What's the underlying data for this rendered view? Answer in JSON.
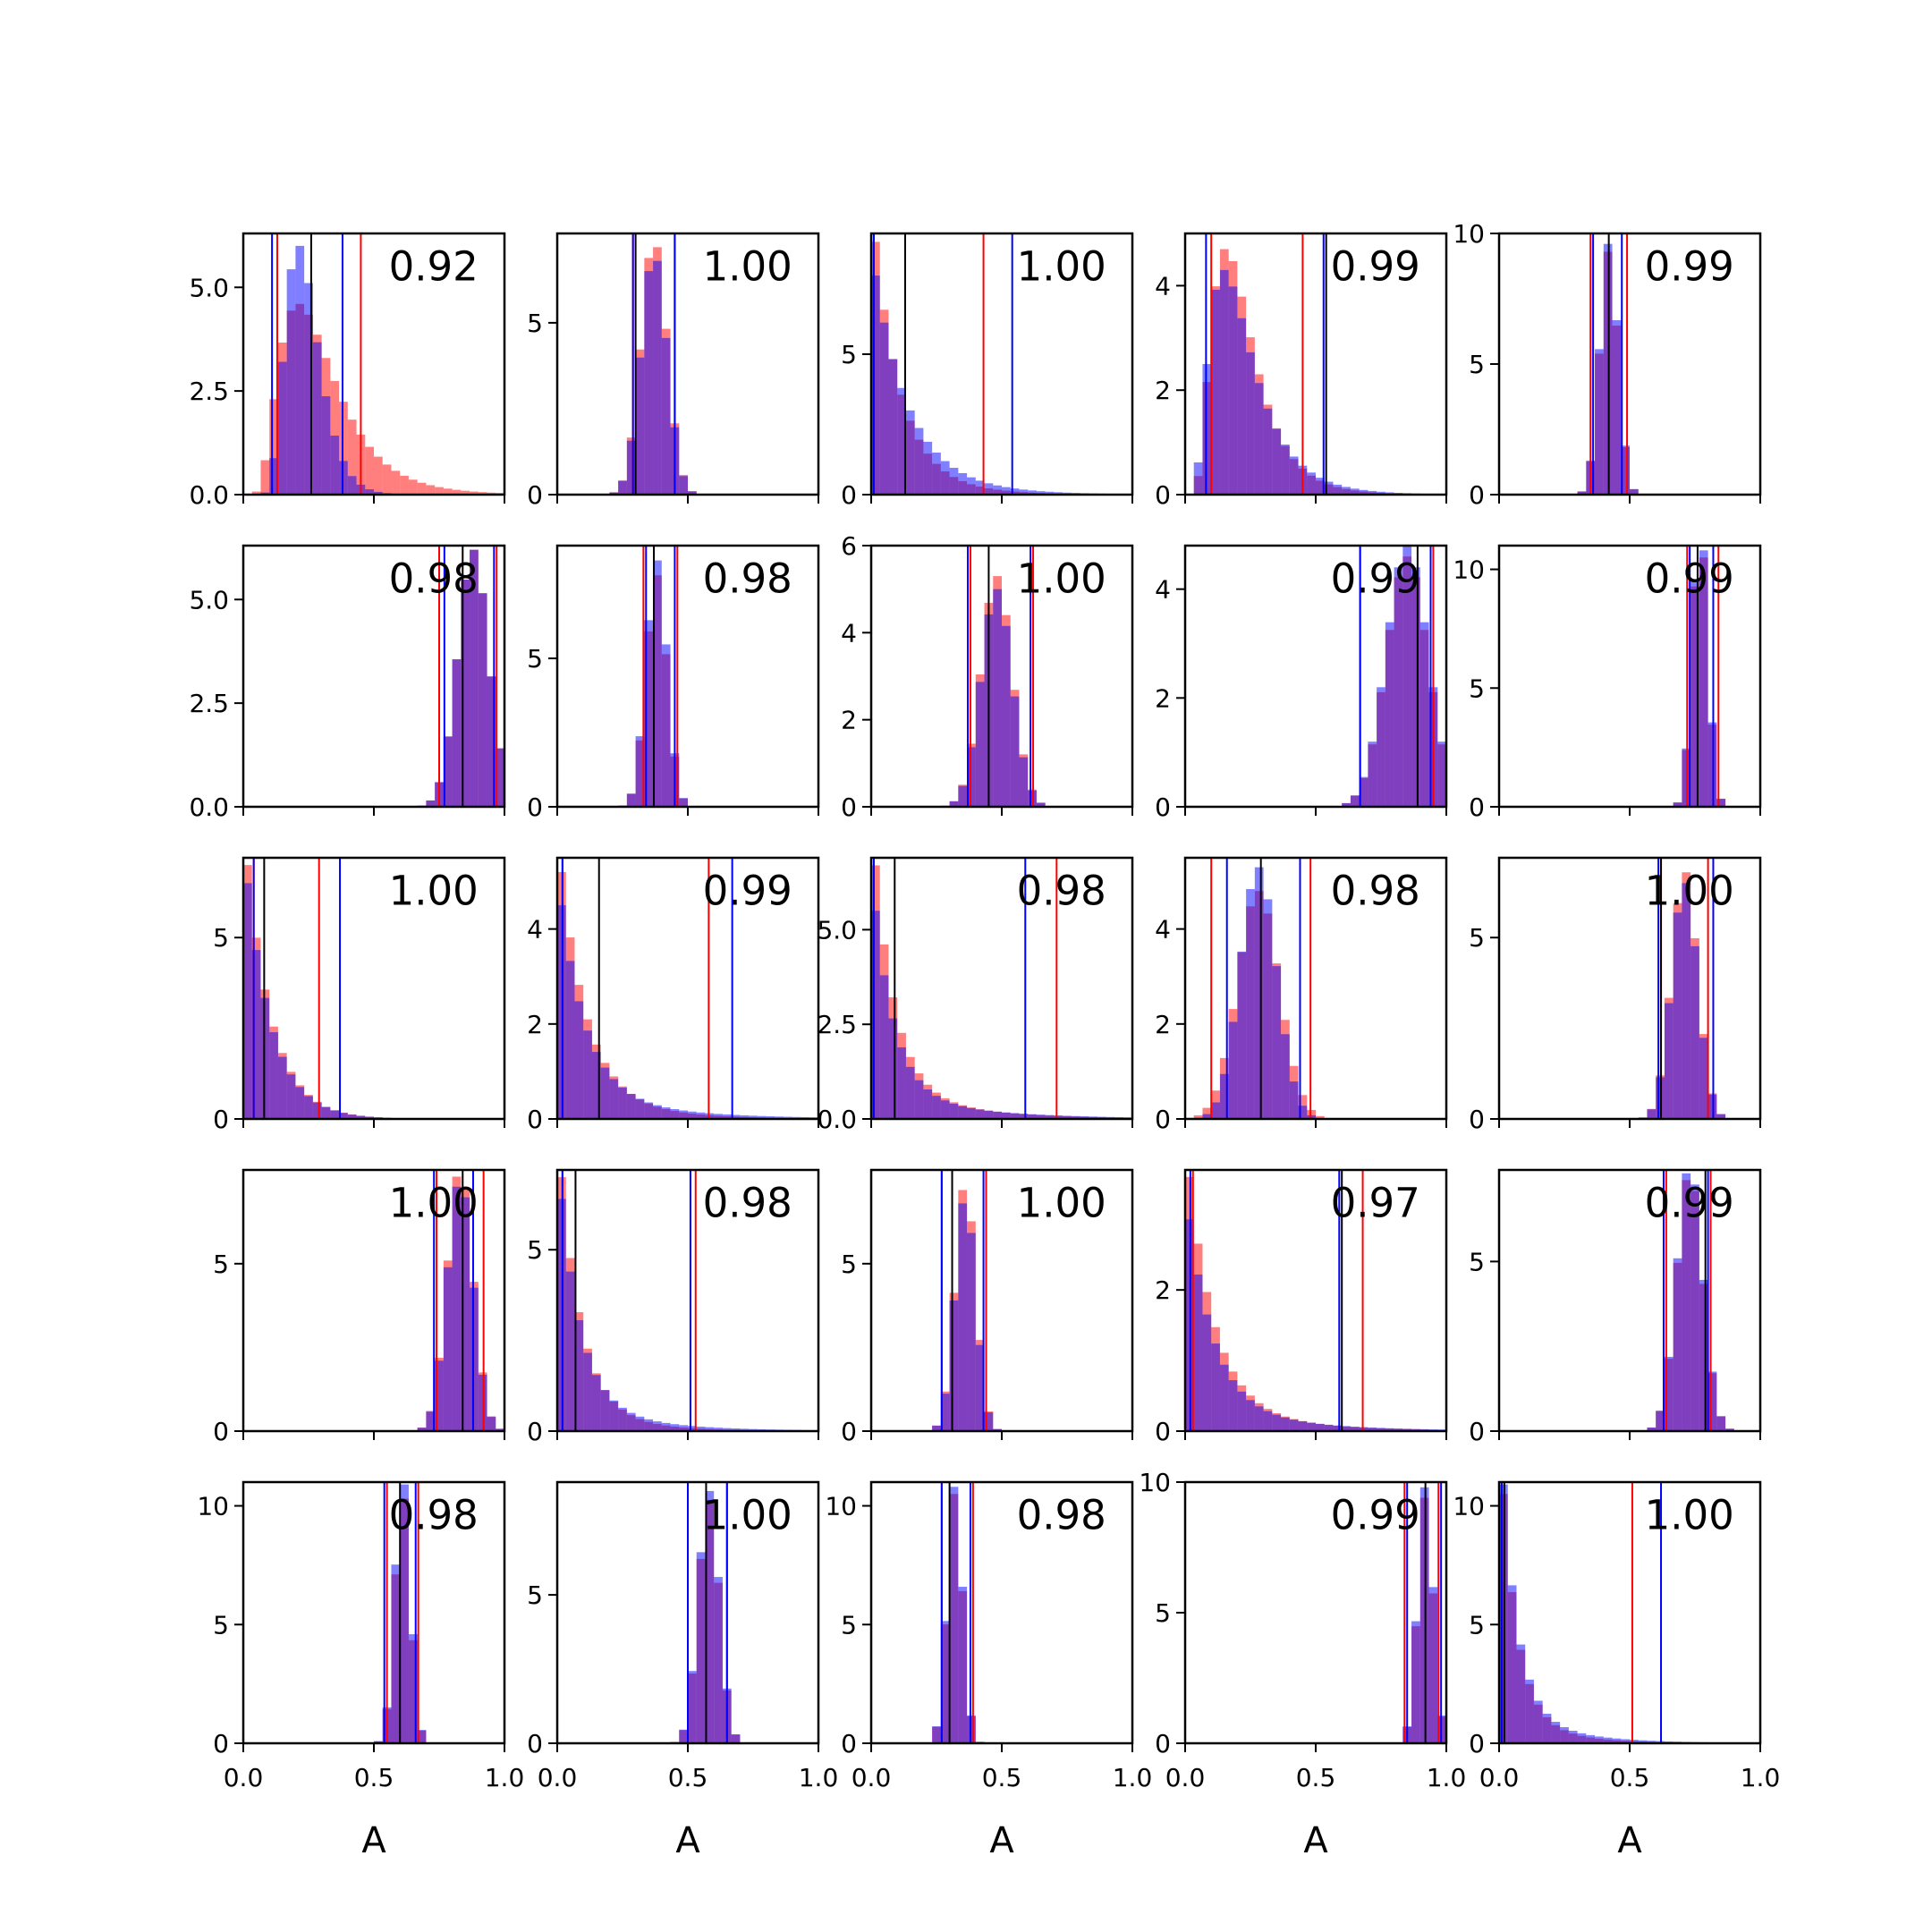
{
  "chart_data": {
    "type": "histogram-grid",
    "rows": 5,
    "cols": 5,
    "xlim": [
      0,
      1
    ],
    "x_ticks": [
      "0.0",
      "0.5",
      "1.0"
    ],
    "xlabel": "A",
    "colors": {
      "red": "#ff0000",
      "blue": "#0000ff",
      "red_hist": "rgba(255,0,0,0.5)",
      "blue_hist": "rgba(0,0,255,0.5)",
      "true_line": "#000000"
    },
    "panels": [
      {
        "label": "0.92",
        "ymax": 6.3,
        "yticks": [
          "0.0",
          "2.5",
          "5.0"
        ],
        "ytick_values": [
          0,
          2.5,
          5
        ],
        "true": 0.26,
        "red_lines": [
          0.13,
          0.45
        ],
        "blue_lines": [
          0.11,
          0.38
        ],
        "red_dist": {
          "type": "lognorm",
          "mu": 0.27,
          "sd": 0.5
        },
        "blue_dist": {
          "type": "lognorm",
          "mu": 0.23,
          "sd": 0.3
        },
        "red_peak": 4.6,
        "blue_peak": 6.0
      },
      {
        "label": "1.00",
        "ymax": 7.6,
        "yticks": [
          "0",
          "5"
        ],
        "ytick_values": [
          0,
          5
        ],
        "true": 0.3,
        "red_lines": [
          0.29,
          0.45
        ],
        "blue_lines": [
          0.29,
          0.45
        ],
        "red_dist": {
          "type": "norm",
          "mu": 0.37,
          "sd": 0.05
        },
        "blue_dist": {
          "type": "norm",
          "mu": 0.37,
          "sd": 0.05
        },
        "red_peak": 7.2,
        "blue_peak": 6.8
      },
      {
        "label": "1.00",
        "ymax": 9.3,
        "yticks": [
          "0",
          "5"
        ],
        "ytick_values": [
          0,
          5
        ],
        "true": 0.13,
        "red_lines": [
          0.01,
          0.43
        ],
        "blue_lines": [
          0.01,
          0.54
        ],
        "red_dist": {
          "type": "exp",
          "mu": 0.1,
          "sd": 0.2
        },
        "blue_dist": {
          "type": "exp",
          "mu": 0.13,
          "sd": 0.25
        },
        "red_peak": 9.0,
        "blue_peak": 7.8
      },
      {
        "label": "0.99",
        "ymax": 5.0,
        "yticks": [
          "0",
          "2",
          "4"
        ],
        "ytick_values": [
          0,
          2,
          4
        ],
        "true": 0.54,
        "red_lines": [
          0.1,
          0.45
        ],
        "blue_lines": [
          0.08,
          0.53
        ],
        "red_dist": {
          "type": "lognorm",
          "mu": 0.2,
          "sd": 0.5
        },
        "blue_dist": {
          "type": "lognorm",
          "mu": 0.2,
          "sd": 0.55
        },
        "red_peak": 4.7,
        "blue_peak": 4.3
      },
      {
        "label": "0.99",
        "ymax": 10.0,
        "yticks": [
          "0",
          "5",
          "10"
        ],
        "ytick_values": [
          0,
          5,
          10
        ],
        "true": 0.42,
        "red_lines": [
          0.35,
          0.49
        ],
        "blue_lines": [
          0.36,
          0.47
        ],
        "red_dist": {
          "type": "norm",
          "mu": 0.42,
          "sd": 0.035
        },
        "blue_dist": {
          "type": "norm",
          "mu": 0.42,
          "sd": 0.035
        },
        "red_peak": 9.3,
        "blue_peak": 9.6
      },
      {
        "label": "0.98",
        "ymax": 6.3,
        "yticks": [
          "0.0",
          "2.5",
          "5.0"
        ],
        "ytick_values": [
          0,
          2.5,
          5
        ],
        "true": 0.84,
        "red_lines": [
          0.75,
          0.97
        ],
        "blue_lines": [
          0.77,
          0.96
        ],
        "red_dist": {
          "type": "norm",
          "mu": 0.88,
          "sd": 0.06
        },
        "blue_dist": {
          "type": "norm",
          "mu": 0.88,
          "sd": 0.06
        },
        "red_peak": 6.2,
        "blue_peak": 6.2
      },
      {
        "label": "0.98",
        "ymax": 8.8,
        "yticks": [
          "0",
          "5"
        ],
        "ytick_values": [
          0,
          5
        ],
        "true": 0.37,
        "red_lines": [
          0.33,
          0.46
        ],
        "blue_lines": [
          0.34,
          0.45
        ],
        "red_dist": {
          "type": "norm",
          "mu": 0.38,
          "sd": 0.04
        },
        "blue_dist": {
          "type": "norm",
          "mu": 0.38,
          "sd": 0.04
        },
        "red_peak": 7.8,
        "blue_peak": 8.3
      },
      {
        "label": "1.00",
        "ymax": 6.0,
        "yticks": [
          "0",
          "2",
          "4",
          "6"
        ],
        "ytick_values": [
          0,
          2,
          4,
          6
        ],
        "true": 0.45,
        "red_lines": [
          0.38,
          0.62
        ],
        "blue_lines": [
          0.37,
          0.61
        ],
        "red_dist": {
          "type": "norm",
          "mu": 0.48,
          "sd": 0.06
        },
        "blue_dist": {
          "type": "norm",
          "mu": 0.48,
          "sd": 0.06
        },
        "red_peak": 5.3,
        "blue_peak": 5.0
      },
      {
        "label": "0.99",
        "ymax": 4.8,
        "yticks": [
          "0",
          "2",
          "4"
        ],
        "ytick_values": [
          0,
          2,
          4
        ],
        "true": 0.89,
        "red_lines": [
          0.67,
          0.95
        ],
        "blue_lines": [
          0.67,
          0.94
        ],
        "red_dist": {
          "type": "norm",
          "mu": 0.85,
          "sd": 0.08
        },
        "blue_dist": {
          "type": "norm",
          "mu": 0.85,
          "sd": 0.08
        },
        "red_peak": 4.6,
        "blue_peak": 4.8
      },
      {
        "label": "0.99",
        "ymax": 11.0,
        "yticks": [
          "0",
          "5",
          "10"
        ],
        "ytick_values": [
          0,
          5,
          10
        ],
        "true": 0.76,
        "red_lines": [
          0.72,
          0.84
        ],
        "blue_lines": [
          0.73,
          0.82
        ],
        "red_dist": {
          "type": "norm",
          "mu": 0.77,
          "sd": 0.03
        },
        "blue_dist": {
          "type": "norm",
          "mu": 0.77,
          "sd": 0.03
        },
        "red_peak": 10.5,
        "blue_peak": 10.8
      },
      {
        "label": "1.00",
        "ymax": 7.2,
        "yticks": [
          "0",
          "5"
        ],
        "ytick_values": [
          0,
          5
        ],
        "true": 0.08,
        "red_lines": [
          0.04,
          0.29
        ],
        "blue_lines": [
          0.04,
          0.37
        ],
        "red_dist": {
          "type": "exp",
          "mu": 0.1,
          "sd": 0.09
        },
        "blue_dist": {
          "type": "exp",
          "mu": 0.1,
          "sd": 0.1
        },
        "red_peak": 7.0,
        "blue_peak": 6.5
      },
      {
        "label": "0.99",
        "ymax": 5.5,
        "yticks": [
          "0",
          "2",
          "4"
        ],
        "ytick_values": [
          0,
          2,
          4
        ],
        "true": 0.16,
        "red_lines": [
          0.02,
          0.58
        ],
        "blue_lines": [
          0.02,
          0.67
        ],
        "red_dist": {
          "type": "exp",
          "mu": 0.1,
          "sd": 0.25
        },
        "blue_dist": {
          "type": "exp",
          "mu": 0.1,
          "sd": 0.35
        },
        "red_peak": 5.2,
        "blue_peak": 4.5
      },
      {
        "label": "0.98",
        "ymax": 6.9,
        "yticks": [
          "0.0",
          "2.5",
          "5.0"
        ],
        "ytick_values": [
          0,
          2.5,
          5
        ],
        "true": 0.09,
        "red_lines": [
          0.01,
          0.71
        ],
        "blue_lines": [
          0.01,
          0.59
        ],
        "red_dist": {
          "type": "exp",
          "mu": 0.08,
          "sd": 0.3
        },
        "blue_dist": {
          "type": "exp",
          "mu": 0.08,
          "sd": 0.35
        },
        "red_peak": 6.7,
        "blue_peak": 5.5
      },
      {
        "label": "0.98",
        "ymax": 5.5,
        "yticks": [
          "0",
          "2",
          "4"
        ],
        "ytick_values": [
          0,
          2,
          4
        ],
        "true": 0.29,
        "red_lines": [
          0.1,
          0.48
        ],
        "blue_lines": [
          0.16,
          0.44
        ],
        "red_dist": {
          "type": "norm",
          "mu": 0.28,
          "sd": 0.08
        },
        "blue_dist": {
          "type": "norm",
          "mu": 0.28,
          "sd": 0.07
        },
        "red_peak": 4.8,
        "blue_peak": 5.3
      },
      {
        "label": "1.00",
        "ymax": 7.2,
        "yticks": [
          "0",
          "5"
        ],
        "ytick_values": [
          0,
          5
        ],
        "true": 0.62,
        "red_lines": [
          0.62,
          0.8
        ],
        "blue_lines": [
          0.61,
          0.82
        ],
        "red_dist": {
          "type": "norm",
          "mu": 0.71,
          "sd": 0.05
        },
        "blue_dist": {
          "type": "norm",
          "mu": 0.71,
          "sd": 0.05
        },
        "red_peak": 6.8,
        "blue_peak": 6.5
      },
      {
        "label": "1.00",
        "ymax": 7.8,
        "yticks": [
          "0",
          "5"
        ],
        "ytick_values": [
          0,
          5
        ],
        "true": 0.84,
        "red_lines": [
          0.74,
          0.92
        ],
        "blue_lines": [
          0.73,
          0.88
        ],
        "red_dist": {
          "type": "norm",
          "mu": 0.83,
          "sd": 0.05
        },
        "blue_dist": {
          "type": "norm",
          "mu": 0.83,
          "sd": 0.05
        },
        "red_peak": 7.6,
        "blue_peak": 7.3
      },
      {
        "label": "0.98",
        "ymax": 7.2,
        "yticks": [
          "0",
          "5"
        ],
        "ytick_values": [
          0,
          5
        ],
        "true": 0.07,
        "red_lines": [
          0.02,
          0.53
        ],
        "blue_lines": [
          0.02,
          0.51
        ],
        "red_dist": {
          "type": "exp",
          "mu": 0.08,
          "sd": 0.2
        },
        "blue_dist": {
          "type": "exp",
          "mu": 0.08,
          "sd": 0.28
        },
        "red_peak": 7.0,
        "blue_peak": 6.4
      },
      {
        "label": "1.00",
        "ymax": 7.8,
        "yticks": [
          "0",
          "5"
        ],
        "ytick_values": [
          0,
          5
        ],
        "true": 0.31,
        "red_lines": [
          0.27,
          0.44
        ],
        "blue_lines": [
          0.27,
          0.43
        ],
        "red_dist": {
          "type": "norm",
          "mu": 0.36,
          "sd": 0.04
        },
        "blue_dist": {
          "type": "norm",
          "mu": 0.36,
          "sd": 0.04
        },
        "red_peak": 7.2,
        "blue_peak": 6.8
      },
      {
        "label": "0.97",
        "ymax": 3.7,
        "yticks": [
          "0",
          "2"
        ],
        "ytick_values": [
          0,
          2
        ],
        "true": 0.6,
        "red_lines": [
          0.03,
          0.68
        ],
        "blue_lines": [
          0.02,
          0.59
        ],
        "red_dist": {
          "type": "exp",
          "mu": 0.1,
          "sd": 0.3
        },
        "blue_dist": {
          "type": "exp",
          "mu": 0.1,
          "sd": 0.35
        },
        "red_peak": 3.6,
        "blue_peak": 3.0
      },
      {
        "label": "0.99",
        "ymax": 7.7,
        "yticks": [
          "0",
          "5"
        ],
        "ytick_values": [
          0,
          5
        ],
        "true": 0.79,
        "red_lines": [
          0.64,
          0.81
        ],
        "blue_lines": [
          0.63,
          0.8
        ],
        "red_dist": {
          "type": "norm",
          "mu": 0.73,
          "sd": 0.05
        },
        "blue_dist": {
          "type": "norm",
          "mu": 0.73,
          "sd": 0.05
        },
        "red_peak": 7.4,
        "blue_peak": 7.6
      },
      {
        "label": "0.98",
        "ymax": 11.0,
        "yticks": [
          "0",
          "5",
          "10"
        ],
        "ytick_values": [
          0,
          5,
          10
        ],
        "true": 0.6,
        "red_lines": [
          0.55,
          0.67
        ],
        "blue_lines": [
          0.54,
          0.66
        ],
        "red_dist": {
          "type": "norm",
          "mu": 0.61,
          "sd": 0.03
        },
        "blue_dist": {
          "type": "norm",
          "mu": 0.61,
          "sd": 0.03
        },
        "red_peak": 10.3,
        "blue_peak": 10.9
      },
      {
        "label": "1.00",
        "ymax": 8.8,
        "yticks": [
          "0",
          "5"
        ],
        "ytick_values": [
          0,
          5
        ],
        "true": 0.57,
        "red_lines": [
          0.5,
          0.65
        ],
        "blue_lines": [
          0.5,
          0.65
        ],
        "red_dist": {
          "type": "norm",
          "mu": 0.58,
          "sd": 0.04
        },
        "blue_dist": {
          "type": "norm",
          "mu": 0.58,
          "sd": 0.04
        },
        "red_peak": 8.2,
        "blue_peak": 8.5
      },
      {
        "label": "0.98",
        "ymax": 11.0,
        "yticks": [
          "0",
          "5",
          "10"
        ],
        "ytick_values": [
          0,
          5,
          10
        ],
        "true": 0.3,
        "red_lines": [
          0.27,
          0.39
        ],
        "blue_lines": [
          0.27,
          0.38
        ],
        "red_dist": {
          "type": "norm",
          "mu": 0.32,
          "sd": 0.03
        },
        "blue_dist": {
          "type": "norm",
          "mu": 0.32,
          "sd": 0.03
        },
        "red_peak": 10.5,
        "blue_peak": 10.8
      },
      {
        "label": "0.99",
        "ymax": 10.0,
        "yticks": [
          "0",
          "5",
          "10"
        ],
        "ytick_values": [
          0,
          5,
          10
        ],
        "true": 0.92,
        "red_lines": [
          0.84,
          0.97
        ],
        "blue_lines": [
          0.85,
          0.98
        ],
        "red_dist": {
          "type": "norm",
          "mu": 0.92,
          "sd": 0.03
        },
        "blue_dist": {
          "type": "norm",
          "mu": 0.92,
          "sd": 0.03
        },
        "red_peak": 9.4,
        "blue_peak": 9.8
      },
      {
        "label": "1.00",
        "ymax": 11.0,
        "yticks": [
          "0",
          "5",
          "10"
        ],
        "ytick_values": [
          0,
          5,
          10
        ],
        "true": 0.02,
        "red_lines": [
          0.01,
          0.51
        ],
        "blue_lines": [
          0.01,
          0.62
        ],
        "red_dist": {
          "type": "exp",
          "mu": 0.06,
          "sd": 0.18
        },
        "blue_dist": {
          "type": "exp",
          "mu": 0.06,
          "sd": 0.22
        },
        "red_peak": 10.5,
        "blue_peak": 10.9
      }
    ]
  }
}
